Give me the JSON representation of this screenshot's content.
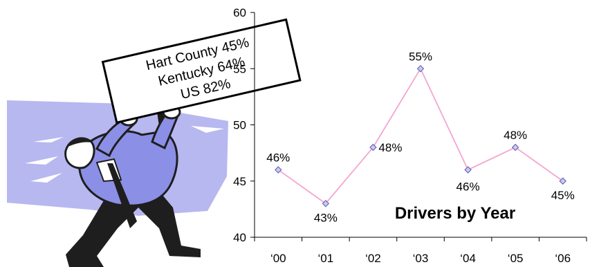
{
  "sign": {
    "lines": [
      "Hart County 45%",
      "Kentucky 64%",
      "US 82%"
    ]
  },
  "chart_data": {
    "type": "line",
    "title": "Drivers by Year",
    "categories": [
      "‘00",
      "‘01",
      "‘02",
      "‘03",
      "‘04",
      "‘05",
      "‘06"
    ],
    "values": [
      46,
      43,
      48,
      55,
      46,
      48,
      45
    ],
    "data_labels": [
      "46%",
      "43%",
      "48%",
      "55%",
      "46%",
      "48%",
      "45%"
    ],
    "ylim": [
      40,
      60
    ],
    "yticks": [
      40,
      45,
      50,
      55,
      60
    ],
    "ytick_labels": [
      "40",
      "45",
      "50",
      "55",
      "60"
    ],
    "grid": false,
    "colors": {
      "line": "#f4a6cf",
      "marker_fill": "#c9c9f2",
      "marker_stroke": "#5b5bb0"
    }
  }
}
